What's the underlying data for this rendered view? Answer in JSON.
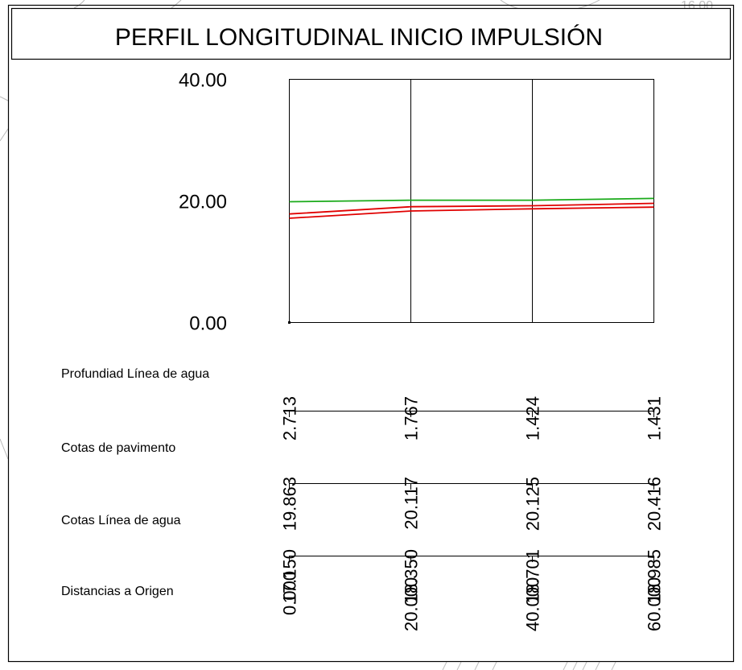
{
  "title": "PERFIL LONGITUDINAL INICIO IMPULSIÓN",
  "colors": {
    "terrain": "#1aaa1a",
    "pipe": "#e00000",
    "frame": "#000000",
    "grid": "#000000",
    "background_sketch": "#b8b8b8"
  },
  "chart_data": {
    "type": "line",
    "title": "PERFIL LONGITUDINAL INICIO IMPULSIÓN",
    "x": [
      0,
      20,
      40,
      60
    ],
    "xlim": [
      0,
      60
    ],
    "ylim": [
      0,
      40
    ],
    "y_ticks": [
      "40.00",
      "20.00",
      "0.00"
    ],
    "y_tick_values": [
      40,
      20,
      0
    ],
    "grid": "vertical at each station",
    "series": [
      {
        "key": "terrain",
        "color": "#1aaa1a",
        "values": [
          19.863,
          20.117,
          20.125,
          20.416
        ]
      },
      {
        "key": "pipe_top",
        "color": "#e00000",
        "values": [
          17.85,
          19.05,
          19.2,
          19.6
        ]
      },
      {
        "key": "pipe_bottom",
        "color": "#e00000",
        "values": [
          17.15,
          18.35,
          18.701,
          18.985
        ]
      }
    ]
  },
  "table": {
    "rows": [
      {
        "label": "Profundiad Línea de agua",
        "values": [
          "2.713",
          "1.767",
          "1.424",
          "1.431"
        ]
      },
      {
        "label": "Cotas de pavimento",
        "values": [
          "19.863",
          "20.117",
          "20.125",
          "20.416"
        ]
      },
      {
        "label": "Cotas Línea de agua",
        "values": [
          "17.150",
          "18.350",
          "18.701",
          "18.985"
        ]
      },
      {
        "label": "Distancias a Origen",
        "values": [
          "0.000",
          "20.000",
          "40.000",
          "60.000"
        ]
      }
    ]
  },
  "corner_fragment": "16.00"
}
